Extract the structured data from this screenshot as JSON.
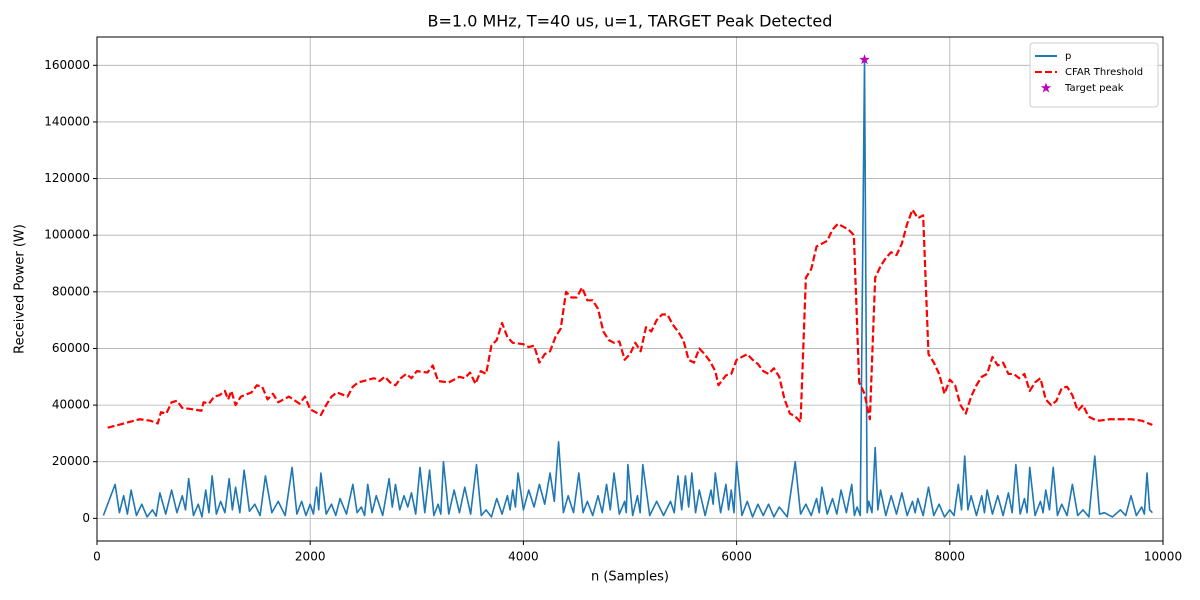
{
  "chart_data": {
    "type": "line",
    "title": "B=1.0 MHz, T=40 us, u=1, TARGET Peak Detected",
    "x_label": "n (Samples)",
    "y_label": "Received Power (W)",
    "xlim": [
      0,
      10000
    ],
    "ylim": [
      -8000,
      170000
    ],
    "xticks": [
      0,
      2000,
      4000,
      6000,
      8000,
      10000
    ],
    "yticks": [
      0,
      20000,
      40000,
      60000,
      80000,
      100000,
      120000,
      140000,
      160000
    ],
    "grid": true,
    "legend": "upper right",
    "series": [
      {
        "name": "p",
        "color": "#1f77b4",
        "style": "solid",
        "x": [
          60,
          170,
          210,
          250,
          285,
          320,
          370,
          420,
          470,
          520,
          555,
          590,
          645,
          700,
          750,
          800,
          830,
          860,
          905,
          950,
          985,
          1020,
          1050,
          1080,
          1120,
          1160,
          1200,
          1240,
          1270,
          1300,
          1340,
          1380,
          1430,
          1480,
          1530,
          1580,
          1640,
          1700,
          1765,
          1830,
          1875,
          1920,
          1960,
          2000,
          2030,
          2060,
          2080,
          2100,
          2150,
          2200,
          2240,
          2280,
          2340,
          2400,
          2440,
          2480,
          2510,
          2540,
          2580,
          2620,
          2680,
          2740,
          2770,
          2800,
          2840,
          2880,
          2915,
          2950,
          2990,
          3030,
          3075,
          3120,
          3160,
          3200,
          3225,
          3250,
          3300,
          3350,
          3400,
          3450,
          3505,
          3560,
          3605,
          3650,
          3700,
          3750,
          3800,
          3850,
          3875,
          3900,
          3925,
          3950,
          4000,
          4050,
          4100,
          4150,
          4200,
          4250,
          4290,
          4330,
          4375,
          4420,
          4470,
          4520,
          4560,
          4600,
          4650,
          4700,
          4740,
          4780,
          4815,
          4850,
          4900,
          4950,
          4965,
          4980,
          5025,
          5070,
          5095,
          5120,
          5185,
          5250,
          5315,
          5380,
          5415,
          5450,
          5485,
          5520,
          5550,
          5580,
          5615,
          5650,
          5705,
          5760,
          5780,
          5800,
          5850,
          5900,
          5925,
          5950,
          5975,
          6000,
          6050,
          6100,
          6150,
          6200,
          6250,
          6300,
          6350,
          6400,
          6475,
          6550,
          6600,
          6650,
          6700,
          6750,
          6775,
          6800,
          6850,
          6900,
          6940,
          6980,
          7030,
          7080,
          7105,
          7130,
          7160,
          7200,
          7225,
          7240,
          7270,
          7300,
          7325,
          7350,
          7400,
          7450,
          7500,
          7550,
          7600,
          7650,
          7675,
          7700,
          7750,
          7800,
          7850,
          7900,
          7950,
          8000,
          8040,
          8080,
          8110,
          8140,
          8170,
          8200,
          8250,
          8300,
          8325,
          8350,
          8400,
          8450,
          8500,
          8550,
          8585,
          8620,
          8660,
          8700,
          8725,
          8750,
          8800,
          8850,
          8875,
          8900,
          8935,
          8970,
          9010,
          9050,
          9100,
          9150,
          9200,
          9250,
          9305,
          9360,
          9405,
          9450,
          9525,
          9600,
          9650,
          9700,
          9750,
          9800,
          9825,
          9850,
          9875,
          9900
        ],
        "values": [
          1000,
          12000,
          2000,
          8000,
          1500,
          10000,
          1000,
          5000,
          500,
          3000,
          800,
          9000,
          1500,
          10000,
          2000,
          8000,
          3000,
          14000,
          1000,
          5000,
          500,
          10000,
          2000,
          15000,
          1500,
          6000,
          2000,
          14000,
          3000,
          11000,
          2000,
          17000,
          2500,
          5000,
          1000,
          15000,
          2000,
          6000,
          1000,
          18000,
          1500,
          6000,
          1000,
          5000,
          1500,
          11000,
          3000,
          16000,
          1500,
          5000,
          1000,
          7000,
          1500,
          12000,
          2000,
          4000,
          1000,
          12000,
          2000,
          8000,
          1000,
          14000,
          4000,
          12000,
          3000,
          8000,
          4000,
          9000,
          1500,
          18000,
          2000,
          17000,
          1000,
          5000,
          1500,
          20000,
          1500,
          10000,
          2000,
          11000,
          1500,
          19000,
          1000,
          3000,
          500,
          7000,
          1500,
          8000,
          3000,
          10000,
          4000,
          16000,
          3000,
          10000,
          4000,
          12000,
          5000,
          16000,
          6000,
          27000,
          2000,
          8000,
          2000,
          16000,
          2000,
          6000,
          1000,
          8000,
          2000,
          12000,
          3000,
          16000,
          1500,
          6000,
          2000,
          19000,
          1000,
          8000,
          2000,
          19000,
          1000,
          6000,
          1000,
          6000,
          2000,
          15000,
          3000,
          15000,
          4000,
          16000,
          2000,
          10000,
          1000,
          10000,
          5000,
          16000,
          2000,
          12000,
          3000,
          10000,
          2000,
          20000,
          1000,
          6000,
          500,
          5000,
          1000,
          5000,
          500,
          4000,
          500,
          20000,
          1500,
          5000,
          1000,
          7000,
          2000,
          11000,
          1500,
          7000,
          1500,
          10000,
          2000,
          12000,
          1000,
          4000,
          1000,
          162000,
          2000,
          6000,
          2000,
          25000,
          3000,
          10000,
          1000,
          8000,
          1500,
          9000,
          1000,
          6000,
          2000,
          7000,
          1000,
          11000,
          1000,
          5000,
          500,
          3000,
          1000,
          12000,
          3000,
          22000,
          3000,
          8000,
          1000,
          8000,
          2000,
          10000,
          1500,
          8000,
          1000,
          9000,
          2000,
          19000,
          1500,
          7000,
          2000,
          18000,
          1000,
          6000,
          2000,
          10000,
          3000,
          18000,
          1000,
          5000,
          1000,
          12000,
          1000,
          3000,
          500,
          22000,
          1500,
          2000,
          500,
          3000,
          1000,
          8000,
          1000,
          4000,
          1500,
          16000,
          3000,
          2000
        ]
      },
      {
        "name": "CFAR Threshold",
        "color": "#ff0000",
        "style": "dashed",
        "x": [
          100,
          300,
          400,
          500,
          570,
          600,
          650,
          700,
          750,
          800,
          900,
          980,
          1000,
          1050,
          1100,
          1150,
          1200,
          1230,
          1260,
          1300,
          1350,
          1450,
          1500,
          1550,
          1600,
          1650,
          1700,
          1800,
          1900,
          1950,
          2000,
          2100,
          2150,
          2200,
          2250,
          2350,
          2400,
          2450,
          2500,
          2600,
          2650,
          2700,
          2750,
          2800,
          2850,
          2900,
          2950,
          3000,
          3100,
          3150,
          3200,
          3300,
          3400,
          3450,
          3500,
          3550,
          3600,
          3650,
          3700,
          3750,
          3800,
          3850,
          3900,
          4000,
          4050,
          4100,
          4150,
          4200,
          4250,
          4300,
          4350,
          4400,
          4450,
          4500,
          4550,
          4600,
          4650,
          4700,
          4750,
          4800,
          4850,
          4900,
          4950,
          5000,
          5050,
          5100,
          5150,
          5200,
          5250,
          5300,
          5350,
          5400,
          5450,
          5500,
          5550,
          5600,
          5650,
          5700,
          5750,
          5800,
          5830,
          5900,
          5950,
          6000,
          6050,
          6100,
          6150,
          6200,
          6250,
          6300,
          6350,
          6400,
          6450,
          6500,
          6550,
          6600,
          6650,
          6700,
          6750,
          6800,
          6850,
          6900,
          6950,
          7000,
          7050,
          7100,
          7150,
          7200,
          7250,
          7300,
          7350,
          7400,
          7450,
          7500,
          7550,
          7600,
          7650,
          7700,
          7750,
          7800,
          7850,
          7900,
          7950,
          8000,
          8050,
          8100,
          8150,
          8200,
          8250,
          8300,
          8350,
          8400,
          8450,
          8500,
          8550,
          8600,
          8650,
          8700,
          8750,
          8800,
          8850,
          8900,
          8950,
          9000,
          9050,
          9100,
          9150,
          9200,
          9250,
          9300,
          9350,
          9400,
          9500,
          9600,
          9700,
          9800,
          9900
        ],
        "values": [
          32000,
          34000,
          35000,
          34500,
          33500,
          37500,
          37000,
          41000,
          41500,
          39000,
          38500,
          38000,
          41000,
          40500,
          43000,
          43500,
          45000,
          42000,
          45000,
          40000,
          43000,
          44500,
          47000,
          46500,
          42000,
          44000,
          41000,
          43000,
          40500,
          43000,
          38500,
          36500,
          40000,
          43000,
          44500,
          43000,
          46500,
          48000,
          48500,
          49500,
          48500,
          50000,
          48000,
          47000,
          49500,
          51000,
          49500,
          52000,
          51500,
          54000,
          48500,
          48000,
          50000,
          49500,
          51500,
          47500,
          52000,
          51000,
          61000,
          63000,
          69000,
          64000,
          62000,
          61500,
          60500,
          61000,
          55000,
          58000,
          59000,
          64000,
          67000,
          80000,
          78000,
          78000,
          81500,
          77000,
          77000,
          74000,
          66000,
          63000,
          62000,
          62500,
          56000,
          58000,
          62000,
          59000,
          67500,
          66000,
          70000,
          72000,
          72000,
          68500,
          66000,
          63000,
          56000,
          55000,
          60000,
          58000,
          55500,
          52000,
          47000,
          50500,
          51000,
          56000,
          57000,
          58000,
          56000,
          54500,
          52000,
          51000,
          53000,
          50000,
          42000,
          37000,
          36000,
          34000,
          85000,
          88000,
          96000,
          97000,
          98000,
          102000,
          104000,
          103000,
          102000,
          100000,
          48000,
          44000,
          35000,
          85000,
          89000,
          92000,
          94000,
          93000,
          97000,
          104000,
          109000,
          106000,
          107000,
          58000,
          55000,
          51000,
          44000,
          49000,
          47000,
          40000,
          37000,
          43000,
          47000,
          50000,
          51000,
          57000,
          54000,
          55000,
          51000,
          51000,
          49500,
          51000,
          45000,
          48000,
          49500,
          42000,
          40000,
          41500,
          46000,
          46500,
          43500,
          38000,
          40000,
          36000,
          35000,
          34500,
          35000,
          35000,
          35000,
          34500,
          33000
        ]
      },
      {
        "name": "Target peak",
        "type": "scatter",
        "color": "#bf00bf",
        "marker": "star",
        "x": [
          7200
        ],
        "values": [
          162000
        ]
      }
    ]
  }
}
